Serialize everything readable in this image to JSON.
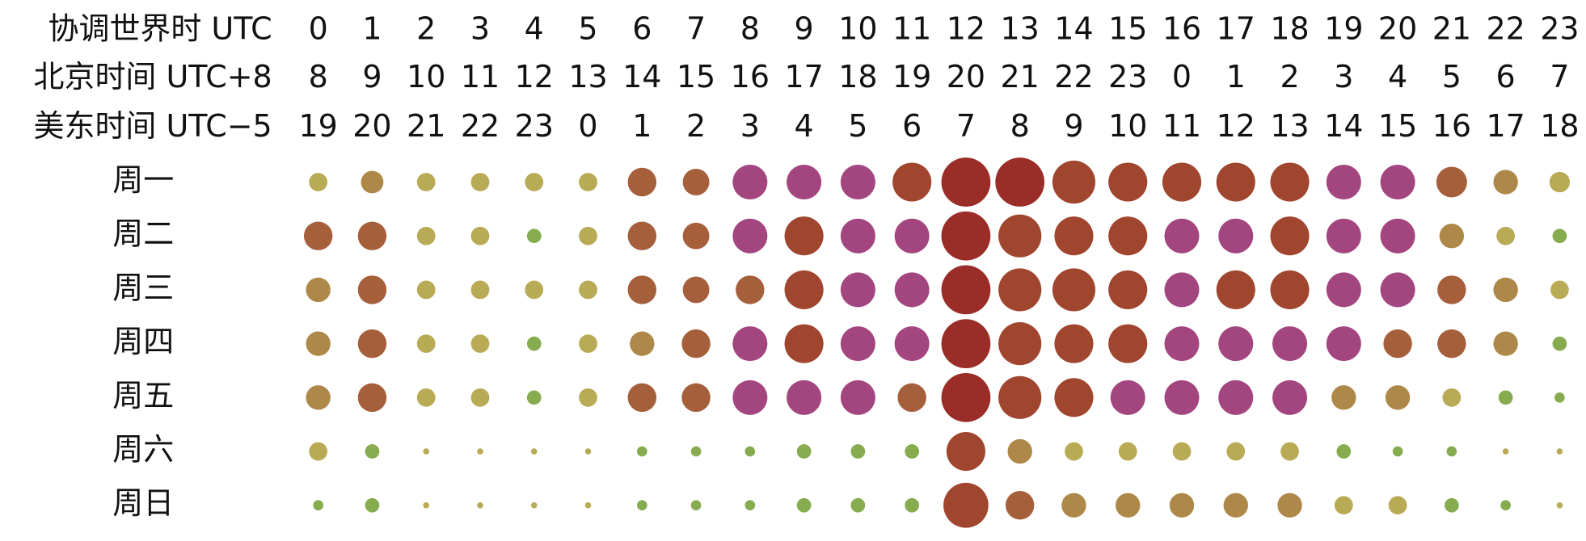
{
  "chart_data": {
    "type": "bubble",
    "header_rows": [
      {
        "label": "协调世界时 UTC",
        "values": [
          0,
          1,
          2,
          3,
          4,
          5,
          6,
          7,
          8,
          9,
          10,
          11,
          12,
          13,
          14,
          15,
          16,
          17,
          18,
          19,
          20,
          21,
          22,
          23
        ]
      },
      {
        "label": "北京时间 UTC+8",
        "values": [
          8,
          9,
          10,
          11,
          12,
          13,
          14,
          15,
          16,
          17,
          18,
          19,
          20,
          21,
          22,
          23,
          0,
          1,
          2,
          3,
          4,
          5,
          6,
          7
        ]
      },
      {
        "label": "美东时间 UTC−5",
        "values": [
          19,
          20,
          21,
          22,
          23,
          0,
          1,
          2,
          3,
          4,
          5,
          6,
          7,
          8,
          9,
          10,
          11,
          12,
          13,
          14,
          15,
          16,
          17,
          18
        ]
      }
    ],
    "series": [
      {
        "name": "周一",
        "values": [
          9,
          11,
          9,
          9,
          9,
          9,
          14,
          13,
          17,
          17,
          17,
          19,
          24,
          24,
          21,
          19,
          19,
          19,
          19,
          17,
          17,
          15,
          12,
          10
        ],
        "colors": [
          "#b9ab55",
          "#ae8848",
          "#b9ab55",
          "#b9ab55",
          "#b9ab55",
          "#b9ab55",
          "#a65f3b",
          "#a65f3b",
          "#a3457f",
          "#a3457f",
          "#a3457f",
          "#a0452e",
          "#9a2d28",
          "#9a2d28",
          "#a0452e",
          "#a0452e",
          "#a0452e",
          "#a0452e",
          "#a0452e",
          "#a3457f",
          "#a3457f",
          "#a65f3b",
          "#ae8848",
          "#b9ab55"
        ]
      },
      {
        "name": "周二",
        "values": [
          14,
          14,
          9,
          9,
          7,
          9,
          14,
          13,
          17,
          19,
          17,
          17,
          24,
          21,
          19,
          19,
          17,
          17,
          19,
          17,
          17,
          12,
          9,
          7
        ],
        "colors": [
          "#a65f3b",
          "#a65f3b",
          "#b9ab55",
          "#b9ab55",
          "#86ac4f",
          "#b9ab55",
          "#a65f3b",
          "#a65f3b",
          "#a3457f",
          "#a0452e",
          "#a3457f",
          "#a3457f",
          "#9a2d28",
          "#a0452e",
          "#a0452e",
          "#a0452e",
          "#a3457f",
          "#a3457f",
          "#a0452e",
          "#a3457f",
          "#a3457f",
          "#ae8848",
          "#b9ab55",
          "#86ac4f"
        ]
      },
      {
        "name": "周三",
        "values": [
          12,
          14,
          9,
          9,
          9,
          9,
          14,
          13,
          14,
          19,
          17,
          17,
          24,
          21,
          21,
          19,
          17,
          19,
          19,
          17,
          17,
          14,
          12,
          9
        ],
        "colors": [
          "#ae8848",
          "#a65f3b",
          "#b9ab55",
          "#b9ab55",
          "#b9ab55",
          "#b9ab55",
          "#a65f3b",
          "#a65f3b",
          "#a65f3b",
          "#a0452e",
          "#a3457f",
          "#a3457f",
          "#9a2d28",
          "#a0452e",
          "#a0452e",
          "#a0452e",
          "#a3457f",
          "#a0452e",
          "#a0452e",
          "#a3457f",
          "#a3457f",
          "#a65f3b",
          "#ae8848",
          "#b9ab55"
        ]
      },
      {
        "name": "周四",
        "values": [
          12,
          14,
          9,
          9,
          7,
          9,
          12,
          14,
          17,
          19,
          17,
          17,
          24,
          21,
          19,
          19,
          17,
          17,
          17,
          17,
          14,
          14,
          12,
          7
        ],
        "colors": [
          "#ae8848",
          "#a65f3b",
          "#b9ab55",
          "#b9ab55",
          "#86ac4f",
          "#b9ab55",
          "#ae8848",
          "#a65f3b",
          "#a3457f",
          "#a0452e",
          "#a3457f",
          "#a3457f",
          "#9a2d28",
          "#a0452e",
          "#a0452e",
          "#a0452e",
          "#a3457f",
          "#a3457f",
          "#a3457f",
          "#a3457f",
          "#a65f3b",
          "#a65f3b",
          "#ae8848",
          "#86ac4f"
        ]
      },
      {
        "name": "周五",
        "values": [
          12,
          14,
          9,
          9,
          7,
          9,
          14,
          14,
          17,
          17,
          17,
          14,
          24,
          21,
          19,
          17,
          17,
          17,
          17,
          12,
          12,
          9,
          7,
          5
        ],
        "colors": [
          "#ae8848",
          "#a65f3b",
          "#b9ab55",
          "#b9ab55",
          "#86ac4f",
          "#b9ab55",
          "#a65f3b",
          "#a65f3b",
          "#a3457f",
          "#a3457f",
          "#a3457f",
          "#a65f3b",
          "#9a2d28",
          "#a0452e",
          "#a0452e",
          "#a3457f",
          "#a3457f",
          "#a3457f",
          "#a3457f",
          "#ae8848",
          "#ae8848",
          "#b9ab55",
          "#86ac4f",
          "#86ac4f"
        ]
      },
      {
        "name": "周六",
        "values": [
          9,
          7,
          3,
          3,
          3,
          3,
          5,
          5,
          5,
          7,
          7,
          7,
          19,
          12,
          9,
          9,
          9,
          9,
          9,
          7,
          5,
          5,
          3,
          3
        ],
        "colors": [
          "#b9ab55",
          "#86ac4f",
          "#b9ab55",
          "#b9ab55",
          "#b9ab55",
          "#b9ab55",
          "#86ac4f",
          "#86ac4f",
          "#86ac4f",
          "#86ac4f",
          "#86ac4f",
          "#86ac4f",
          "#a0452e",
          "#ae8848",
          "#b9ab55",
          "#b9ab55",
          "#b9ab55",
          "#b9ab55",
          "#b9ab55",
          "#86ac4f",
          "#86ac4f",
          "#86ac4f",
          "#b9ab55",
          "#b9ab55"
        ]
      },
      {
        "name": "周日",
        "values": [
          5,
          7,
          3,
          3,
          3,
          3,
          5,
          5,
          5,
          7,
          7,
          7,
          22,
          14,
          12,
          12,
          12,
          12,
          12,
          9,
          9,
          7,
          5,
          3
        ],
        "colors": [
          "#86ac4f",
          "#86ac4f",
          "#b9ab55",
          "#b9ab55",
          "#b9ab55",
          "#b9ab55",
          "#86ac4f",
          "#86ac4f",
          "#86ac4f",
          "#86ac4f",
          "#86ac4f",
          "#86ac4f",
          "#a0452e",
          "#a65f3b",
          "#ae8848",
          "#ae8848",
          "#ae8848",
          "#ae8848",
          "#ae8848",
          "#b9ab55",
          "#b9ab55",
          "#86ac4f",
          "#86ac4f",
          "#b9ab55"
        ]
      }
    ]
  }
}
